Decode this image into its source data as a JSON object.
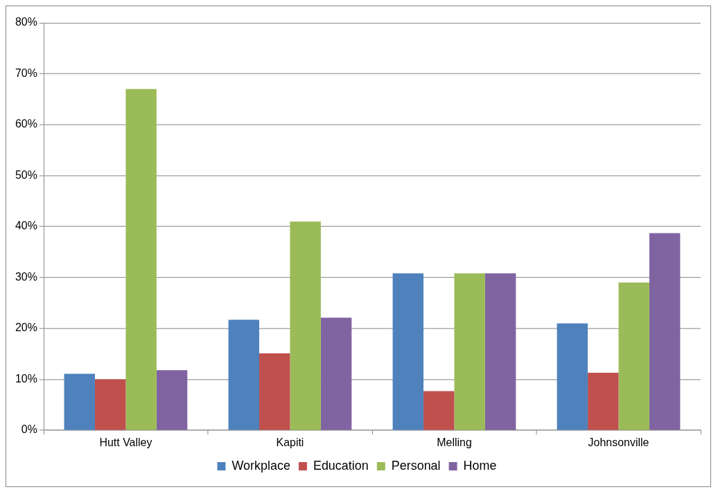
{
  "chart_data": {
    "type": "bar",
    "categories": [
      "Hutt Valley",
      "Kapiti",
      "Melling",
      "Johnsonville"
    ],
    "series": [
      {
        "name": "Workplace",
        "color": "#4f81bd",
        "values": [
          11.1,
          21.7,
          30.8,
          21
        ]
      },
      {
        "name": "Education",
        "color": "#c0504d",
        "values": [
          10,
          15.1,
          7.7,
          11.3
        ]
      },
      {
        "name": "Personal",
        "color": "#9bbb59",
        "values": [
          67,
          41,
          30.8,
          29
        ]
      },
      {
        "name": "Home",
        "color": "#8064a2",
        "values": [
          11.8,
          22.1,
          30.8,
          38.7
        ]
      }
    ],
    "ylim": [
      0,
      80
    ],
    "yticks": [
      {
        "value": 0,
        "label": "0%"
      },
      {
        "value": 10,
        "label": "10%"
      },
      {
        "value": 20,
        "label": "20%"
      },
      {
        "value": 30,
        "label": "30%"
      },
      {
        "value": 40,
        "label": "40%"
      },
      {
        "value": 50,
        "label": "50%"
      },
      {
        "value": 60,
        "label": "60%"
      },
      {
        "value": 70,
        "label": "70%"
      },
      {
        "value": 80,
        "label": "80%"
      }
    ],
    "grid": "y",
    "legend": "bottom"
  }
}
